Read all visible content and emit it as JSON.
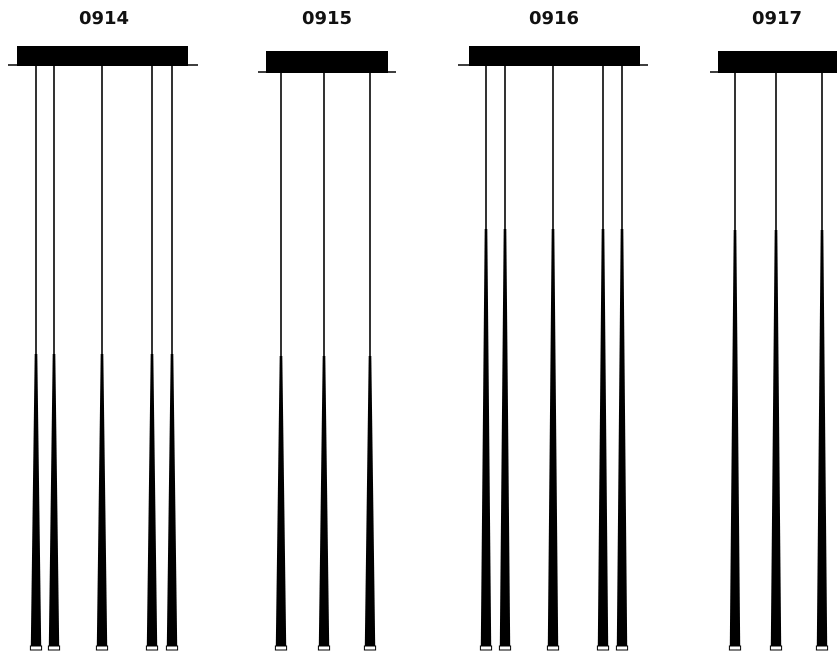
{
  "colors": {
    "ink": "#000000",
    "lens": "#ffffff",
    "background": "#ffffff"
  },
  "fixtures": [
    {
      "model": "0914",
      "pendants": 5
    },
    {
      "model": "0915",
      "pendants": 3
    },
    {
      "model": "0916",
      "pendants": 5
    },
    {
      "model": "0917",
      "pendants": 3
    }
  ]
}
